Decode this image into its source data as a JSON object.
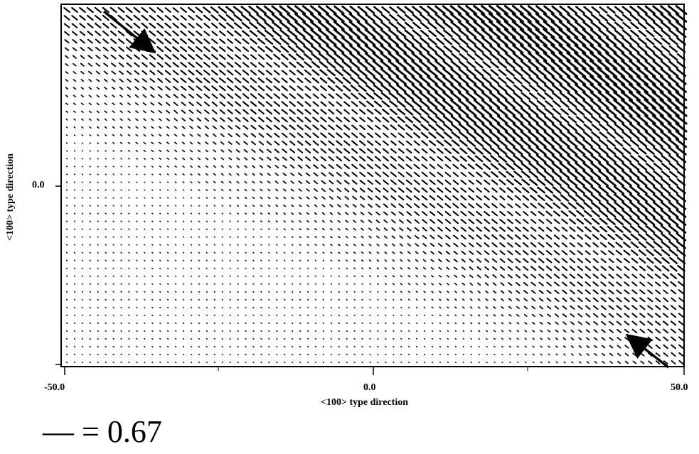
{
  "chart_data": {
    "type": "vector_field",
    "xlabel": "<100> type direction",
    "ylabel": "<100> type direction",
    "xlim": [
      -50,
      50
    ],
    "x_ticks": [
      "-50.0",
      "0.0",
      "50.0"
    ],
    "y_ticks": [
      "0.0"
    ],
    "annotation_arrows": [
      {
        "name": "incoming-arrow",
        "location": "top-left",
        "direction": "down-right"
      },
      {
        "name": "outgoing-arrow",
        "location": "bottom-right",
        "direction": "up-left"
      }
    ],
    "caption": "— = 0.67"
  },
  "colors": {
    "ink": "#000000",
    "background": "#ffffff"
  }
}
